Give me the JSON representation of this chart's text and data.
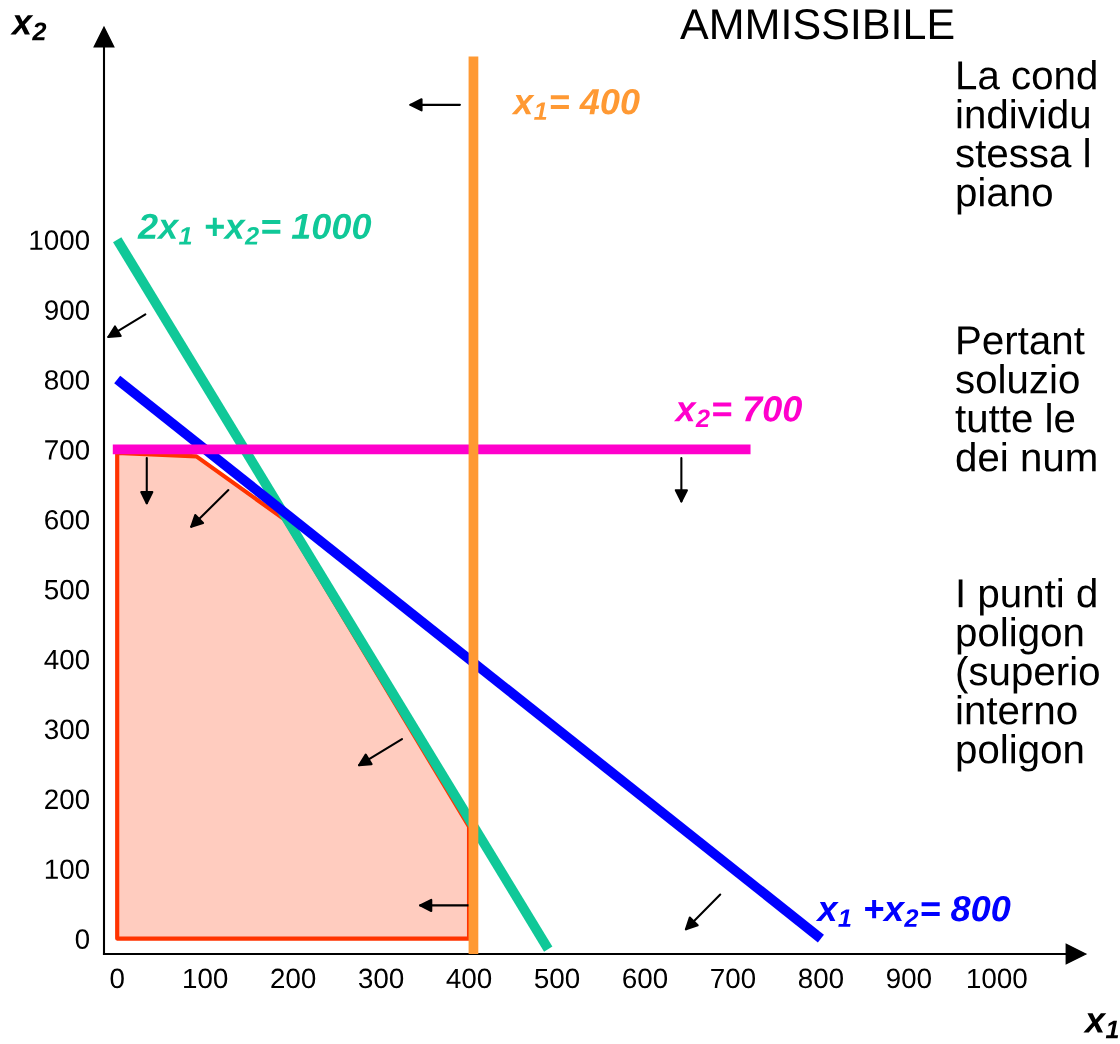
{
  "chart_data": {
    "type": "line",
    "title": "AMMISSIBILE",
    "xlabel": "x$_{1}$",
    "ylabel": "x$_{2}$",
    "xlim": [
      -15,
      1090
    ],
    "ylim": [
      -22,
      1290
    ],
    "xticks": [
      0,
      100,
      200,
      300,
      400,
      500,
      600,
      700,
      800,
      900,
      1000
    ],
    "yticks": [
      0,
      100,
      200,
      300,
      400,
      500,
      600,
      700,
      800,
      900,
      1000
    ],
    "grid": false,
    "legend": false,
    "series": [
      {
        "type": "area",
        "color": "#ff3300",
        "x": [
          0,
          90,
          190,
          400
        ],
        "values": [
          695,
          690,
          600,
          160
        ]
      },
      {
        "name": "2x$_{1}$ +x$_{2}$= 1000",
        "color": "#10c898",
        "x": [
          0,
          490
        ],
        "values": [
          1000,
          -15
        ]
      },
      {
        "name": "x$_{1}$ +x$_{2}$= 800",
        "color": "#0000ff",
        "x": [
          0,
          800
        ],
        "values": [
          800,
          0
        ]
      },
      {
        "name": "x$_{2}$= 700",
        "color": "#ff00cc",
        "x": [
          -5,
          720
        ],
        "values": [
          700,
          700
        ]
      },
      {
        "name": "x$_{1}$= 400",
        "color": "#ff9933",
        "x": [
          405,
          405
        ],
        "values": [
          -22,
          1262
        ]
      }
    ],
    "annotations": [
      "La cond\nindividu\nstessa l\npiano",
      "Pertant\nsoluzio\ntutte le\ndei num",
      "I punti d\npoligon\n(superio\ninterno\npoligon"
    ]
  }
}
